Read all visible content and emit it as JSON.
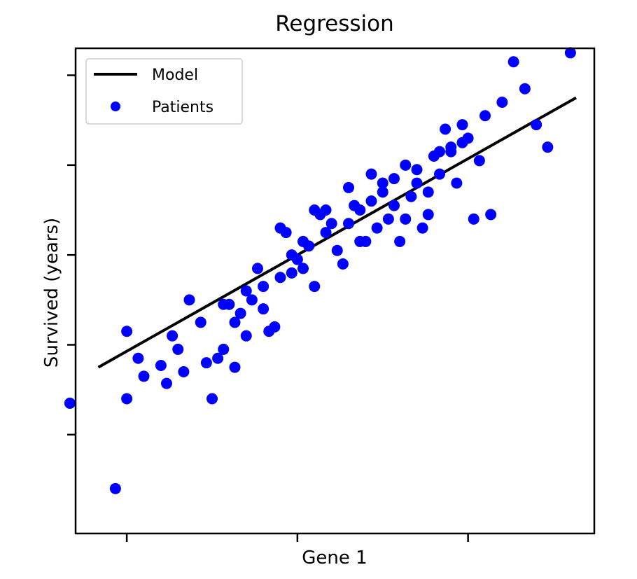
{
  "chart_data": {
    "type": "scatter",
    "title": "Regression",
    "xlabel": "Gene 1",
    "ylabel": "Survived (years)",
    "xlim": [
      -2.35,
      2.21
    ],
    "ylim": [
      -3.05,
      2.35
    ],
    "xticks": [
      -1.9,
      -0.4,
      1.1
    ],
    "yticks": [
      -1.95,
      -0.95,
      0.05,
      1.05,
      2.05
    ],
    "tick_labels_shown": false,
    "grid": false,
    "legend": {
      "position": "top-left",
      "entries": [
        "Model",
        "Patients"
      ]
    },
    "colors": {
      "model": "#000000",
      "patients": "#0000ff"
    },
    "series": [
      {
        "name": "Model",
        "type": "line",
        "x": [
          -2.15,
          2.05
        ],
        "y": [
          -1.2,
          1.8
        ]
      },
      {
        "name": "Patients",
        "type": "scatter",
        "points": [
          [
            -2.4,
            -1.6
          ],
          [
            -2.0,
            -2.55
          ],
          [
            -1.9,
            -1.55
          ],
          [
            -1.9,
            -0.8
          ],
          [
            -1.8,
            -1.1
          ],
          [
            -1.75,
            -1.3
          ],
          [
            -1.6,
            -1.18
          ],
          [
            -1.55,
            -1.38
          ],
          [
            -1.5,
            -0.85
          ],
          [
            -1.45,
            -1.0
          ],
          [
            -1.4,
            -1.25
          ],
          [
            -1.35,
            -0.45
          ],
          [
            -1.2,
            -1.15
          ],
          [
            -1.15,
            -1.55
          ],
          [
            -1.1,
            -1.1
          ],
          [
            -1.05,
            -0.5
          ],
          [
            -1.0,
            -0.5
          ],
          [
            -0.95,
            -0.7
          ],
          [
            -0.9,
            -0.6
          ],
          [
            -0.85,
            -0.35
          ],
          [
            -0.8,
            -0.45
          ],
          [
            -0.75,
            -0.1
          ],
          [
            -0.7,
            -0.3
          ],
          [
            -0.65,
            -0.8
          ],
          [
            -0.6,
            -0.75
          ],
          [
            -0.55,
            -0.2
          ],
          [
            -0.5,
            0.3
          ],
          [
            -0.45,
            0.05
          ],
          [
            -0.4,
            0.0
          ],
          [
            -0.35,
            -0.1
          ],
          [
            -0.3,
            0.15
          ],
          [
            -0.25,
            -0.3
          ],
          [
            -0.2,
            0.5
          ],
          [
            -0.15,
            0.55
          ],
          [
            -0.1,
            0.4
          ],
          [
            -0.05,
            0.1
          ],
          [
            0.0,
            -0.05
          ],
          [
            0.05,
            0.8
          ],
          [
            0.1,
            0.6
          ],
          [
            0.15,
            0.55
          ],
          [
            0.2,
            0.2
          ],
          [
            0.25,
            0.95
          ],
          [
            0.3,
            0.35
          ],
          [
            0.35,
            0.75
          ],
          [
            0.4,
            0.45
          ],
          [
            0.45,
            0.6
          ],
          [
            0.5,
            0.2
          ],
          [
            0.55,
            1.05
          ],
          [
            0.6,
            0.7
          ],
          [
            0.65,
            0.85
          ],
          [
            0.7,
            0.35
          ],
          [
            0.75,
            0.5
          ],
          [
            0.8,
            1.15
          ],
          [
            0.85,
            0.95
          ],
          [
            0.9,
            1.45
          ],
          [
            0.95,
            1.2
          ],
          [
            1.0,
            0.85
          ],
          [
            1.05,
            1.5
          ],
          [
            1.1,
            1.35
          ],
          [
            1.15,
            0.45
          ],
          [
            1.2,
            1.1
          ],
          [
            1.3,
            0.5
          ],
          [
            1.4,
            1.75
          ],
          [
            1.5,
            2.2
          ],
          [
            1.6,
            1.9
          ],
          [
            1.7,
            1.5
          ],
          [
            1.8,
            1.25
          ],
          [
            2.0,
            2.3
          ],
          [
            -1.25,
            -0.7
          ],
          [
            -1.05,
            -1.0
          ],
          [
            -0.95,
            -1.2
          ],
          [
            -0.7,
            -0.55
          ],
          [
            -0.35,
            0.2
          ],
          [
            -0.15,
            0.3
          ],
          [
            0.05,
            0.4
          ],
          [
            0.25,
            0.65
          ],
          [
            0.45,
            0.9
          ],
          [
            0.65,
            1.0
          ],
          [
            0.95,
            1.25
          ],
          [
            1.25,
            1.6
          ],
          [
            -0.55,
            0.35
          ],
          [
            -0.25,
            0.55
          ],
          [
            0.15,
            0.2
          ],
          [
            0.35,
            0.85
          ],
          [
            0.55,
            0.45
          ],
          [
            0.75,
            0.75
          ],
          [
            -0.85,
            -0.85
          ],
          [
            -0.45,
            -0.15
          ],
          [
            0.85,
            1.2
          ],
          [
            1.05,
            1.3
          ]
        ]
      }
    ]
  }
}
